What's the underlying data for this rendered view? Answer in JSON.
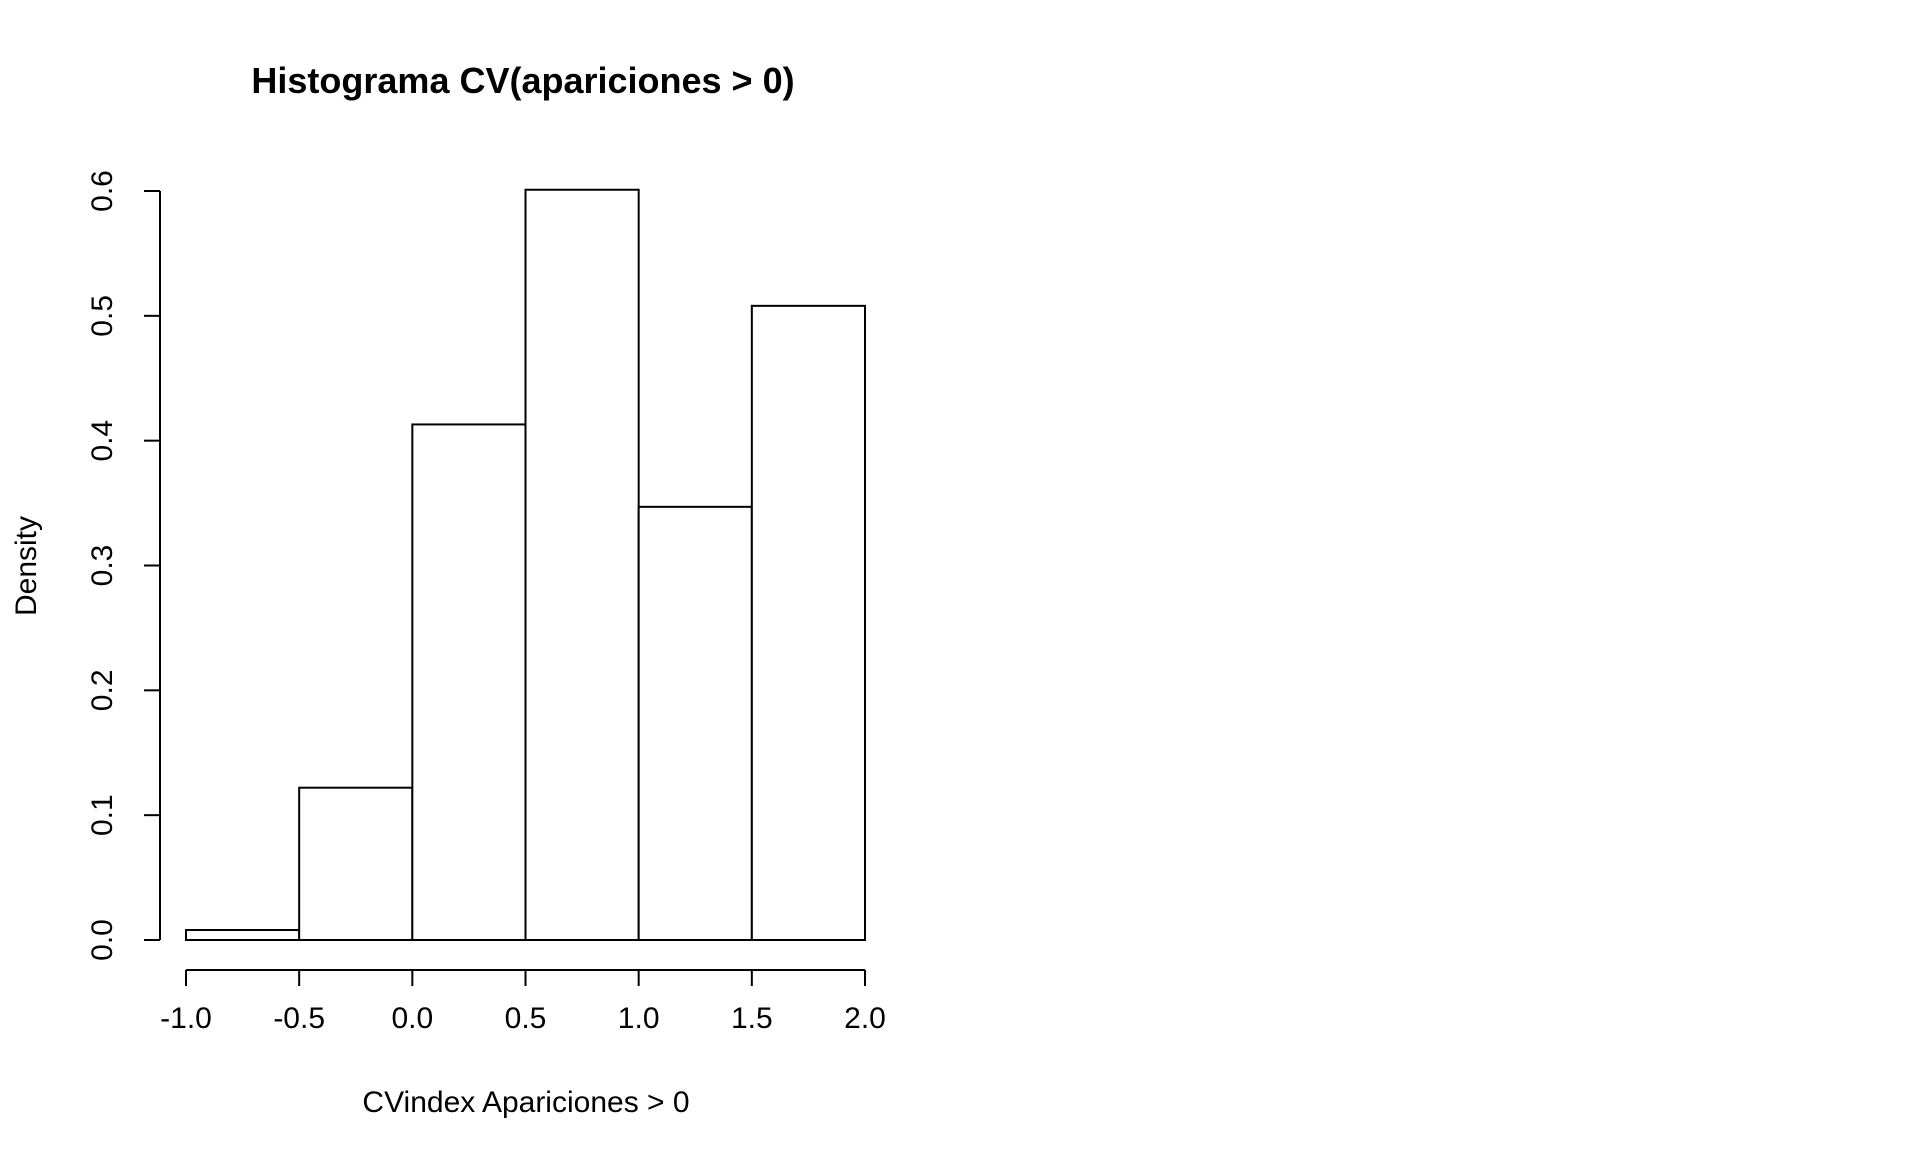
{
  "chart_data": {
    "type": "bar",
    "title": "Histograma CV(apariciones > 0)",
    "xlabel": "CVindex Apariciones > 0",
    "ylabel": "Density",
    "bins": [
      {
        "start": -1.0,
        "end": -0.5,
        "density": 0.008
      },
      {
        "start": -0.5,
        "end": 0.0,
        "density": 0.122
      },
      {
        "start": 0.0,
        "end": 0.5,
        "density": 0.413
      },
      {
        "start": 0.5,
        "end": 1.0,
        "density": 0.601
      },
      {
        "start": 1.0,
        "end": 1.5,
        "density": 0.347
      },
      {
        "start": 1.5,
        "end": 2.0,
        "density": 0.508
      }
    ],
    "xlim": [
      -1.0,
      2.0
    ],
    "ylim": [
      0.0,
      0.6
    ],
    "x_ticks": [
      "-1.0",
      "-0.5",
      "0.0",
      "0.5",
      "1.0",
      "1.5",
      "2.0"
    ],
    "y_ticks": [
      "0.0",
      "0.1",
      "0.2",
      "0.3",
      "0.4",
      "0.5",
      "0.6"
    ],
    "grid": false,
    "legend": "none",
    "colors": {
      "bar_fill": "#ffffff",
      "bar_stroke": "#000000",
      "axis": "#000000"
    }
  }
}
